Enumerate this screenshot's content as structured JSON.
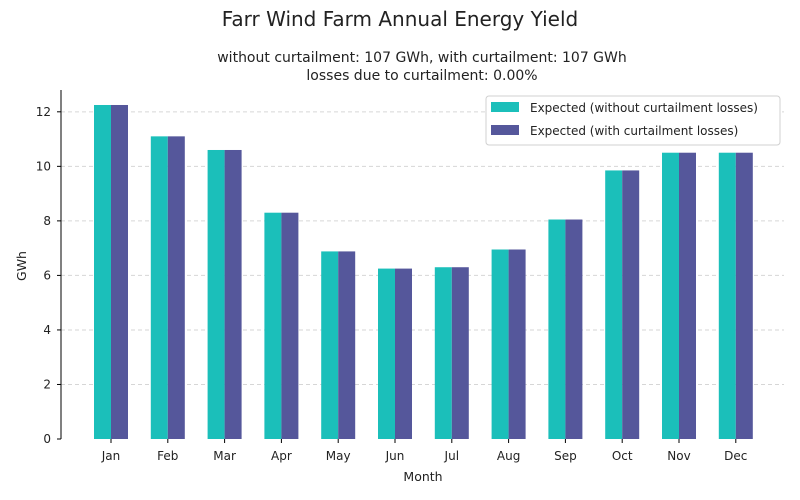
{
  "chart_data": {
    "type": "bar",
    "title": "Farr Wind Farm Annual Energy Yield",
    "subtitle_line1": "without curtailment: 107 GWh, with curtailment: 107 GWh",
    "subtitle_line2": "losses due to curtailment: 0.00%",
    "xlabel": "Month",
    "ylabel": "GWh",
    "ylim": [
      0,
      12.8
    ],
    "yticks": [
      0,
      2,
      4,
      6,
      8,
      10,
      12
    ],
    "categories": [
      "Jan",
      "Feb",
      "Mar",
      "Apr",
      "May",
      "Jun",
      "Jul",
      "Aug",
      "Sep",
      "Oct",
      "Nov",
      "Dec"
    ],
    "series": [
      {
        "name": "Expected (without curtailment losses)",
        "color": "#1bbfba",
        "values": [
          12.25,
          11.1,
          10.6,
          8.3,
          6.88,
          6.25,
          6.3,
          6.95,
          8.05,
          9.85,
          10.5,
          10.5
        ]
      },
      {
        "name": "Expected (with curtailment losses)",
        "color": "#55579b",
        "values": [
          12.25,
          11.1,
          10.6,
          8.3,
          6.88,
          6.25,
          6.3,
          6.95,
          8.05,
          9.85,
          10.5,
          10.5
        ]
      }
    ],
    "grid": "horizontal dashed",
    "legend_position": "top-right"
  }
}
